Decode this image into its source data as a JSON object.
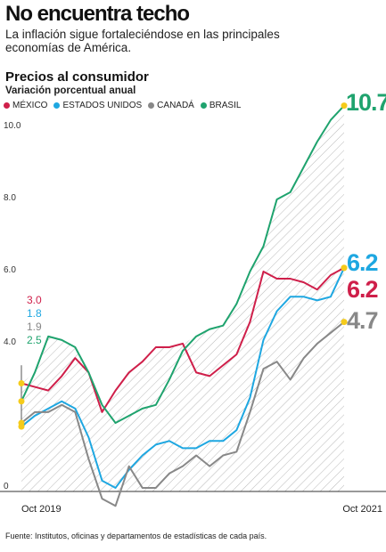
{
  "header": {
    "title": "No encuentra techo",
    "subtitle": "La inflación sigue fortaleciéndose en las principales economías de América."
  },
  "chart_data": {
    "type": "line",
    "title": "Precios al consumidor",
    "subtitle": "Variación porcentual anual",
    "x": [
      "Oct 2019",
      "Nov 2019",
      "Dic 2019",
      "Ene 2020",
      "Feb 2020",
      "Mar 2020",
      "Abr 2020",
      "May 2020",
      "Jun 2020",
      "Jul 2020",
      "Ago 2020",
      "Sep 2020",
      "Oct 2020",
      "Nov 2020",
      "Dic 2020",
      "Ene 2021",
      "Feb 2021",
      "Mar 2021",
      "Abr 2021",
      "May 2021",
      "Jun 2021",
      "Jul 2021",
      "Ago 2021",
      "Sep 2021",
      "Oct 2021"
    ],
    "x_tick_labels": [
      "Oct 2019",
      "Oct 2021"
    ],
    "ylim": [
      0,
      11
    ],
    "y_ticks": [
      0,
      4.0,
      6.0,
      8.0,
      10.0
    ],
    "y_tick_labels": [
      "0",
      "4.0",
      "6.0",
      "8.0",
      "10.0"
    ],
    "grid": false,
    "legend_position": "top-left",
    "series": [
      {
        "name": "MÉXICO",
        "color": "#cf1f4a",
        "start_label": "3.0",
        "end_label": "6.2",
        "values": [
          3.0,
          2.9,
          2.8,
          3.2,
          3.7,
          3.3,
          2.2,
          2.8,
          3.3,
          3.6,
          4.0,
          4.0,
          4.1,
          3.3,
          3.2,
          3.5,
          3.8,
          4.7,
          6.1,
          5.9,
          5.9,
          5.8,
          5.6,
          6.0,
          6.2
        ]
      },
      {
        "name": "ESTADOS UNIDOS",
        "color": "#1ea7e1",
        "start_label": "1.8",
        "end_label": "6.2",
        "values": [
          1.8,
          2.1,
          2.3,
          2.5,
          2.3,
          1.5,
          0.3,
          0.1,
          0.6,
          1.0,
          1.3,
          1.4,
          1.2,
          1.2,
          1.4,
          1.4,
          1.7,
          2.6,
          4.2,
          5.0,
          5.4,
          5.4,
          5.3,
          5.4,
          6.2
        ]
      },
      {
        "name": "CANADÁ",
        "color": "#888888",
        "start_label": "1.9",
        "end_label": "4.7",
        "values": [
          1.9,
          2.2,
          2.2,
          2.4,
          2.2,
          0.9,
          -0.2,
          -0.4,
          0.7,
          0.1,
          0.1,
          0.5,
          0.7,
          1.0,
          0.7,
          1.0,
          1.1,
          2.2,
          3.4,
          3.6,
          3.1,
          3.7,
          4.1,
          4.4,
          4.7
        ]
      },
      {
        "name": "BRASIL",
        "color": "#1fa36e",
        "start_label": "2.5",
        "end_label": "10.7",
        "values": [
          2.5,
          3.3,
          4.3,
          4.2,
          4.0,
          3.3,
          2.4,
          1.9,
          2.1,
          2.3,
          2.4,
          3.1,
          3.9,
          4.3,
          4.5,
          4.6,
          5.2,
          6.1,
          6.8,
          8.1,
          8.3,
          9.0,
          9.7,
          10.3,
          10.7
        ]
      }
    ]
  },
  "source": "Fuente: Institutos, oficinas y departamentos de estadísticas de cada país."
}
